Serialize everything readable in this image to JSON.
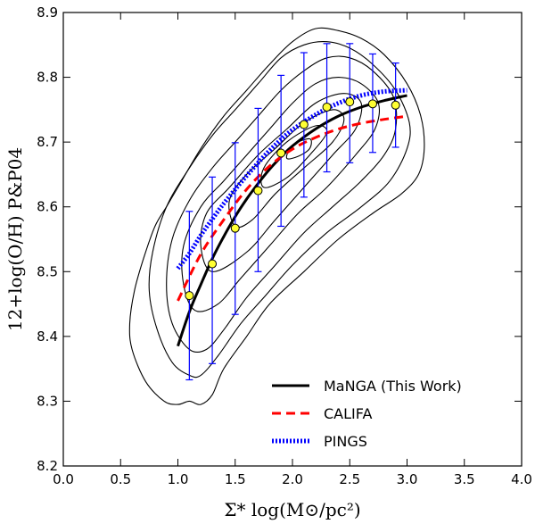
{
  "chart_data": {
    "type": "scatter",
    "xlabel": "Σ* log(M⊙/pc²)",
    "ylabel": "12+log(O/H) P&P04",
    "xlim": [
      0.0,
      4.0
    ],
    "ylim": [
      8.2,
      8.9
    ],
    "x_ticks": [
      "0.0",
      "0.5",
      "1.0",
      "1.5",
      "2.0",
      "2.5",
      "3.0",
      "3.5",
      "4.0"
    ],
    "y_ticks": [
      "8.2",
      "8.3",
      "8.4",
      "8.5",
      "8.6",
      "8.7",
      "8.8",
      "8.9"
    ],
    "legend_position": "lower-right",
    "binned_points": {
      "marker_color": "#ffff33",
      "x": [
        1.1,
        1.3,
        1.5,
        1.7,
        1.9,
        2.1,
        2.3,
        2.5,
        2.7,
        2.9
      ],
      "y": [
        8.463,
        8.512,
        8.567,
        8.625,
        8.683,
        8.727,
        8.754,
        8.762,
        8.759,
        8.757
      ],
      "err_low": [
        8.333,
        8.358,
        8.434,
        8.5,
        8.57,
        8.615,
        8.654,
        8.668,
        8.684,
        8.692
      ],
      "err_high": [
        8.593,
        8.646,
        8.699,
        8.752,
        8.803,
        8.838,
        8.852,
        8.852,
        8.836,
        8.822
      ]
    },
    "series": [
      {
        "name": "MaNGA (This Work)",
        "color": "#000000",
        "style": "solid",
        "x": [
          1.0,
          1.1,
          1.2,
          1.3,
          1.4,
          1.5,
          1.6,
          1.7,
          1.8,
          1.9,
          2.0,
          2.2,
          2.4,
          2.6,
          2.8,
          3.0
        ],
        "y": [
          8.385,
          8.438,
          8.48,
          8.52,
          8.554,
          8.585,
          8.612,
          8.636,
          8.658,
          8.677,
          8.694,
          8.72,
          8.74,
          8.754,
          8.764,
          8.772
        ]
      },
      {
        "name": "CALIFA",
        "color": "#ff0000",
        "style": "dashed",
        "x": [
          1.0,
          1.2,
          1.4,
          1.6,
          1.8,
          2.0,
          2.2,
          2.4,
          2.6,
          2.8,
          3.0
        ],
        "y": [
          8.455,
          8.527,
          8.58,
          8.627,
          8.663,
          8.689,
          8.707,
          8.72,
          8.729,
          8.735,
          8.74
        ]
      },
      {
        "name": "PINGS",
        "color": "#0000ff",
        "style": "dotted",
        "x": [
          1.0,
          1.1,
          1.2,
          1.3,
          1.4,
          1.5,
          1.6,
          1.7,
          1.8,
          1.9,
          2.0,
          2.2,
          2.4,
          2.6,
          2.8,
          3.0
        ],
        "y": [
          8.505,
          8.528,
          8.556,
          8.581,
          8.605,
          8.627,
          8.648,
          8.668,
          8.687,
          8.704,
          8.719,
          8.742,
          8.76,
          8.772,
          8.778,
          8.78
        ]
      }
    ],
    "density_contours": [
      {
        "x": [
          1.1,
          1.0,
          0.88,
          0.72,
          0.6,
          0.58,
          0.62,
          0.7,
          0.8,
          0.9,
          1.0,
          1.2,
          1.4,
          1.6,
          1.8,
          2.0,
          2.2,
          2.4,
          2.6,
          2.8,
          3.0,
          3.12,
          3.15,
          3.1,
          2.95,
          2.7,
          2.4,
          2.1,
          1.8,
          1.6,
          1.4,
          1.3,
          1.2
        ],
        "y": [
          8.3,
          8.295,
          8.3,
          8.33,
          8.38,
          8.42,
          8.47,
          8.52,
          8.57,
          8.6,
          8.63,
          8.69,
          8.74,
          8.78,
          8.82,
          8.855,
          8.875,
          8.872,
          8.86,
          8.835,
          8.79,
          8.74,
          8.69,
          8.65,
          8.62,
          8.59,
          8.55,
          8.5,
          8.45,
          8.4,
          8.35,
          8.31,
          8.295
        ]
      },
      {
        "x": [
          1.1,
          0.95,
          0.82,
          0.75,
          0.78,
          0.9,
          1.1,
          1.3,
          1.5,
          1.7,
          1.9,
          2.1,
          2.3,
          2.5,
          2.7,
          2.9,
          3.02,
          3.0,
          2.85,
          2.6,
          2.3,
          2.0,
          1.75,
          1.55,
          1.35,
          1.2
        ],
        "y": [
          8.34,
          8.36,
          8.41,
          8.47,
          8.53,
          8.6,
          8.66,
          8.71,
          8.75,
          8.79,
          8.83,
          8.85,
          8.855,
          8.845,
          8.82,
          8.78,
          8.73,
          8.69,
          8.64,
          8.6,
          8.56,
          8.51,
          8.46,
          8.42,
          8.37,
          8.34
        ]
      },
      {
        "x": [
          1.1,
          0.95,
          0.9,
          0.95,
          1.1,
          1.3,
          1.5,
          1.7,
          1.9,
          2.1,
          2.3,
          2.5,
          2.7,
          2.88,
          2.9,
          2.8,
          2.6,
          2.35,
          2.1,
          1.85,
          1.6,
          1.4,
          1.25
        ],
        "y": [
          8.38,
          8.42,
          8.48,
          8.55,
          8.61,
          8.66,
          8.7,
          8.74,
          8.78,
          8.81,
          8.83,
          8.83,
          8.81,
          8.77,
          8.72,
          8.68,
          8.64,
          8.6,
          8.56,
          8.51,
          8.46,
          8.41,
          8.38
        ]
      },
      {
        "x": [
          1.15,
          1.05,
          1.05,
          1.2,
          1.4,
          1.6,
          1.8,
          2.0,
          2.2,
          2.4,
          2.6,
          2.75,
          2.72,
          2.55,
          2.3,
          2.05,
          1.8,
          1.55,
          1.35
        ],
        "y": [
          8.44,
          8.48,
          8.54,
          8.6,
          8.64,
          8.68,
          8.72,
          8.76,
          8.79,
          8.8,
          8.79,
          8.76,
          8.72,
          8.68,
          8.63,
          8.59,
          8.54,
          8.49,
          8.45
        ]
      },
      {
        "x": [
          1.3,
          1.2,
          1.25,
          1.45,
          1.7,
          1.95,
          2.2,
          2.45,
          2.6,
          2.55,
          2.35,
          2.1,
          1.85,
          1.6
        ],
        "y": [
          8.5,
          8.54,
          8.59,
          8.63,
          8.68,
          8.72,
          8.76,
          8.775,
          8.76,
          8.72,
          8.68,
          8.63,
          8.58,
          8.53
        ]
      },
      {
        "x": [
          1.5,
          1.45,
          1.6,
          1.85,
          2.1,
          2.35,
          2.45,
          2.35,
          2.1,
          1.85,
          1.65
        ],
        "y": [
          8.57,
          8.61,
          8.65,
          8.69,
          8.73,
          8.75,
          8.735,
          8.7,
          8.66,
          8.62,
          8.58
        ]
      },
      {
        "x": [
          1.75,
          1.75,
          1.95,
          2.2,
          2.3,
          2.15,
          1.95
        ],
        "y": [
          8.63,
          8.66,
          8.7,
          8.725,
          8.715,
          8.68,
          8.645
        ]
      },
      {
        "x": [
          1.95,
          2.0,
          2.15,
          2.15,
          2.05
        ],
        "y": [
          8.675,
          8.695,
          8.705,
          8.69,
          8.678
        ]
      }
    ]
  }
}
